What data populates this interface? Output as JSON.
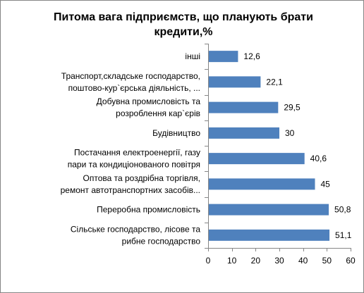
{
  "chart_data": {
    "type": "bar",
    "orientation": "horizontal",
    "title_lines": [
      "Питома вага підприємств, що планують брати",
      "кредити,%"
    ],
    "categories": [
      [
        "інші"
      ],
      [
        "Транспорт,складське господарство,",
        "поштово-кур`єрська діяльність, ..."
      ],
      [
        "Добувна промисловість та",
        "розроблення кар`єрів"
      ],
      [
        "Будівництво"
      ],
      [
        "Постачання електроенергії, газу",
        "пари та кондиціонованого повітря"
      ],
      [
        "Оптова та роздрібна торгівля,",
        "ремонт автотранспортних засобів..."
      ],
      [
        "Переробна промисловість"
      ],
      [
        "Сільське господарство, лісове та",
        "рибне господарство"
      ]
    ],
    "values": [
      12.6,
      22.1,
      29.5,
      30,
      40.6,
      45,
      50.8,
      51.1
    ],
    "value_labels": [
      "12,6",
      "22,1",
      "29,5",
      "30",
      "40,6",
      "45",
      "50,8",
      "51,1"
    ],
    "xlim": [
      0,
      60
    ],
    "xticks": [
      "0",
      "10",
      "20",
      "30",
      "40",
      "50",
      "60"
    ],
    "grid": false,
    "legend": "none",
    "bar_color": "#4f81bd"
  }
}
